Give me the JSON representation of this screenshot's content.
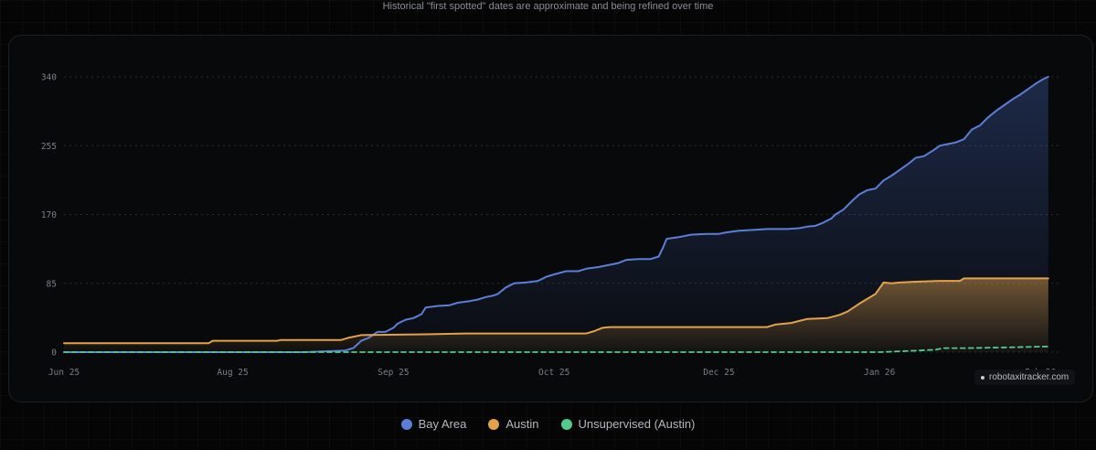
{
  "header": {
    "note": "Historical \"first spotted\" dates are approximate and being refined over time"
  },
  "watermark": {
    "text": "robotaxitracker.com"
  },
  "colors": {
    "bay_area": "#5b7fd6",
    "austin": "#e3a24a",
    "unsupervised": "#52c98d"
  },
  "chart_data": {
    "type": "area",
    "title": "",
    "xlabel": "",
    "ylabel": "",
    "ylim": [
      0,
      340
    ],
    "yticks": [
      0,
      85,
      170,
      255,
      340
    ],
    "xlim_day": [
      0,
      248
    ],
    "xticks": [
      {
        "day": 0,
        "label": "Jun 25"
      },
      {
        "day": 42,
        "label": "Aug 25"
      },
      {
        "day": 82,
        "label": "Sep 25"
      },
      {
        "day": 122,
        "label": "Oct 25"
      },
      {
        "day": 163,
        "label": "Dec 25"
      },
      {
        "day": 203,
        "label": "Jan 26"
      },
      {
        "day": 243,
        "label": "Feb 26"
      }
    ],
    "grid": true,
    "legend_position": "bottom-center",
    "series": [
      {
        "name": "Bay Area",
        "color": "#5b7fd6",
        "fill": true,
        "dashed": false,
        "points": [
          [
            0,
            0
          ],
          [
            60,
            0
          ],
          [
            65,
            1
          ],
          [
            70,
            2
          ],
          [
            72,
            5
          ],
          [
            74,
            14
          ],
          [
            76,
            18
          ],
          [
            78,
            25
          ],
          [
            80,
            25
          ],
          [
            82,
            30
          ],
          [
            83,
            35
          ],
          [
            85,
            40
          ],
          [
            87,
            42
          ],
          [
            89,
            47
          ],
          [
            90,
            55
          ],
          [
            93,
            57
          ],
          [
            96,
            58
          ],
          [
            98,
            61
          ],
          [
            101,
            63
          ],
          [
            103,
            65
          ],
          [
            105,
            68
          ],
          [
            107,
            70
          ],
          [
            108,
            72
          ],
          [
            110,
            80
          ],
          [
            112,
            85
          ],
          [
            115,
            86
          ],
          [
            118,
            88
          ],
          [
            120,
            93
          ],
          [
            122,
            96
          ],
          [
            125,
            100
          ],
          [
            128,
            100
          ],
          [
            130,
            103
          ],
          [
            133,
            105
          ],
          [
            136,
            108
          ],
          [
            138,
            110
          ],
          [
            140,
            114
          ],
          [
            143,
            115
          ],
          [
            146,
            115
          ],
          [
            148,
            118
          ],
          [
            149,
            128
          ],
          [
            150,
            140
          ],
          [
            153,
            142
          ],
          [
            156,
            145
          ],
          [
            160,
            146
          ],
          [
            163,
            146
          ],
          [
            165,
            148
          ],
          [
            168,
            150
          ],
          [
            172,
            151
          ],
          [
            175,
            152
          ],
          [
            180,
            152
          ],
          [
            183,
            153
          ],
          [
            185,
            155
          ],
          [
            187,
            156
          ],
          [
            189,
            160
          ],
          [
            191,
            165
          ],
          [
            192,
            170
          ],
          [
            194,
            176
          ],
          [
            196,
            186
          ],
          [
            198,
            195
          ],
          [
            200,
            200
          ],
          [
            202,
            202
          ],
          [
            204,
            212
          ],
          [
            206,
            218
          ],
          [
            208,
            225
          ],
          [
            210,
            232
          ],
          [
            212,
            240
          ],
          [
            214,
            242
          ],
          [
            216,
            248
          ],
          [
            218,
            255
          ],
          [
            220,
            257
          ],
          [
            222,
            259
          ],
          [
            224,
            263
          ],
          [
            226,
            275
          ],
          [
            228,
            280
          ],
          [
            230,
            290
          ],
          [
            232,
            298
          ],
          [
            234,
            305
          ],
          [
            236,
            312
          ],
          [
            238,
            318
          ],
          [
            240,
            325
          ],
          [
            242,
            332
          ],
          [
            244,
            338
          ],
          [
            245,
            340
          ]
        ]
      },
      {
        "name": "Austin",
        "color": "#e3a24a",
        "fill": true,
        "dashed": false,
        "points": [
          [
            0,
            11
          ],
          [
            36,
            11
          ],
          [
            37,
            14
          ],
          [
            53,
            14
          ],
          [
            54,
            15
          ],
          [
            69,
            15
          ],
          [
            71,
            18
          ],
          [
            73,
            20
          ],
          [
            74,
            21
          ],
          [
            90,
            22
          ],
          [
            100,
            23
          ],
          [
            130,
            23
          ],
          [
            132,
            26
          ],
          [
            134,
            30
          ],
          [
            136,
            31
          ],
          [
            150,
            31
          ],
          [
            175,
            31
          ],
          [
            177,
            34
          ],
          [
            181,
            36
          ],
          [
            185,
            41
          ],
          [
            190,
            42
          ],
          [
            193,
            46
          ],
          [
            195,
            50
          ],
          [
            198,
            60
          ],
          [
            200,
            66
          ],
          [
            202,
            72
          ],
          [
            204,
            86
          ],
          [
            206,
            85
          ],
          [
            208,
            86
          ],
          [
            212,
            87
          ],
          [
            218,
            88
          ],
          [
            223,
            88
          ],
          [
            224,
            91
          ],
          [
            245,
            91
          ]
        ]
      },
      {
        "name": "Unsupervised (Austin)",
        "color": "#52c98d",
        "fill": false,
        "dashed": true,
        "points": [
          [
            0,
            0
          ],
          [
            203,
            0
          ],
          [
            208,
            1
          ],
          [
            213,
            2
          ],
          [
            217,
            3
          ],
          [
            219,
            5
          ],
          [
            225,
            5
          ],
          [
            236,
            6
          ],
          [
            245,
            7
          ]
        ]
      }
    ]
  }
}
